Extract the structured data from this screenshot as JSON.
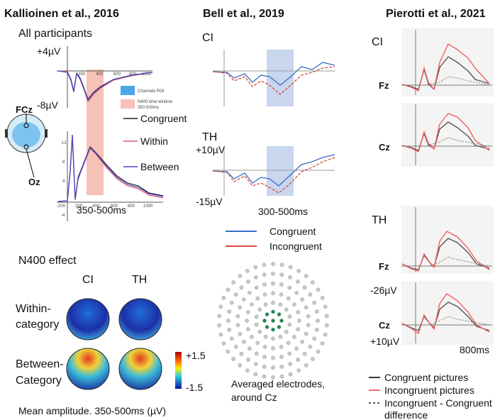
{
  "panels": [
    {
      "title": "Kallioinen et al., 2016",
      "subtitle": "All participants",
      "y_top": "+4µV",
      "y_bottom": "-8µV",
      "channels": [
        "FCz",
        "Oz"
      ],
      "legend_small": [
        "Channels ROI",
        "N400 time window",
        "350-500ms"
      ],
      "legend": [
        "Congruent",
        "Within",
        "Between"
      ],
      "upper_xticks": [
        "200",
        "400",
        "600",
        "800",
        "1000"
      ],
      "lower_xticks": [
        "-200",
        "200",
        "400",
        "600",
        "800",
        "1000"
      ],
      "lower_yticks": [
        "12",
        "8",
        "4",
        "-4"
      ],
      "window": "350-500ms",
      "effect_title": "N400 effect",
      "conditions": [
        "CI",
        "TH"
      ],
      "rows": [
        [
          "Within-",
          "category"
        ],
        [
          "Between-",
          "Category"
        ]
      ],
      "colorbar": [
        "+1.5",
        "-1.5"
      ],
      "caption": "Mean amplitude. 350-500ms (µV)"
    },
    {
      "title": "Bell et al., 2019",
      "groups": [
        "CI",
        "TH"
      ],
      "y_top": "+10µV",
      "y_bottom": "-15µV",
      "window": "300-500ms",
      "legend": [
        "Congruent",
        "Incongruent"
      ],
      "caption": [
        "Averaged electrodes,",
        "around Cz"
      ]
    },
    {
      "title": "Pierotti et al., 2021",
      "groups": [
        "CI",
        "TH"
      ],
      "channels": [
        "Fz",
        "Cz",
        "Fz",
        "Cz"
      ],
      "y_top": "-26µV",
      "y_bottom": "+10µV",
      "x_end": "800ms",
      "legend": [
        "Congruent pictures",
        "Incongruent pictures",
        "Incongruent - Congruent",
        "difference"
      ]
    }
  ]
}
